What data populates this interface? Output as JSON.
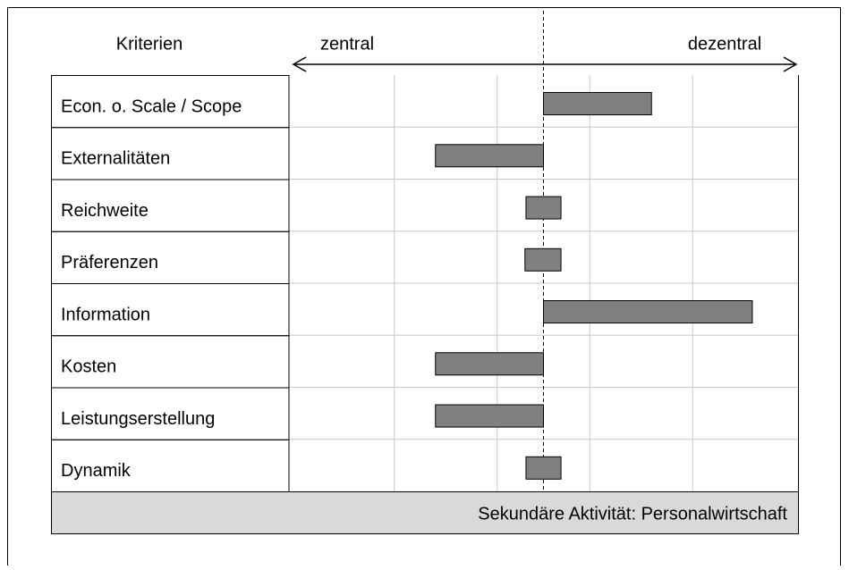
{
  "chart_data": {
    "type": "range_bar",
    "column_header": "Kriterien",
    "left_label": "zentral",
    "right_label": "dezentral",
    "footer": "Sekundäre Aktivität: Personalwirtschaft",
    "categories": [
      "Econ. o. Scale / Scope",
      "Externalitäten",
      "Reichweite",
      "Präferenzen",
      "Information",
      "Kosten",
      "Leistungserstellung",
      "Dynamik"
    ],
    "values": [
      [
        0,
        1.05
      ],
      [
        -1.05,
        0
      ],
      [
        -0.17,
        0.17
      ],
      [
        -0.18,
        0.17
      ],
      [
        0,
        2.03
      ],
      [
        -1.05,
        0
      ],
      [
        -1.05,
        0
      ],
      [
        -0.17,
        0.17
      ]
    ],
    "color": "#808080",
    "xlim": [
      -2.5,
      2.5
    ],
    "xticks": [
      -1.45,
      -0.45,
      0.45,
      1.45
    ],
    "grid": true
  }
}
